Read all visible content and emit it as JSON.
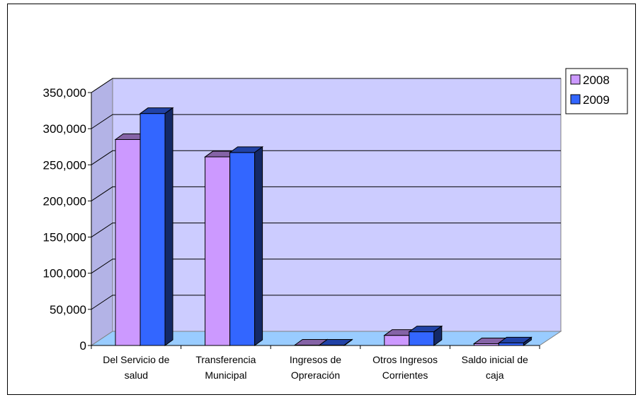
{
  "chart_data": {
    "type": "bar",
    "title": "",
    "xlabel": "",
    "ylabel": "",
    "ylim": [
      0,
      350000
    ],
    "y_ticks": [
      "0",
      "50,000",
      "100,000",
      "150,000",
      "200,000",
      "250,000",
      "300,000",
      "350,000"
    ],
    "y_tick_values": [
      0,
      50000,
      100000,
      150000,
      200000,
      250000,
      300000,
      350000
    ],
    "categories": [
      [
        "Del Servicio de",
        "salud"
      ],
      [
        "Transferencia",
        "Municipal"
      ],
      [
        "Ingresos de",
        "Opreración"
      ],
      [
        "Otros Ingresos",
        "Corrientes"
      ],
      [
        "Saldo inicial de",
        "caja"
      ]
    ],
    "series": [
      {
        "name": "2008",
        "values": [
          285000,
          261000,
          500,
          14000,
          2500
        ],
        "color": "#cc99ff"
      },
      {
        "name": "2009",
        "values": [
          321000,
          267000,
          500,
          19000,
          3500
        ],
        "color": "#3366ff"
      }
    ],
    "grid": true,
    "legend_position": "right",
    "colors": {
      "wall": "#ccccff",
      "floor": "#99ccff"
    }
  }
}
